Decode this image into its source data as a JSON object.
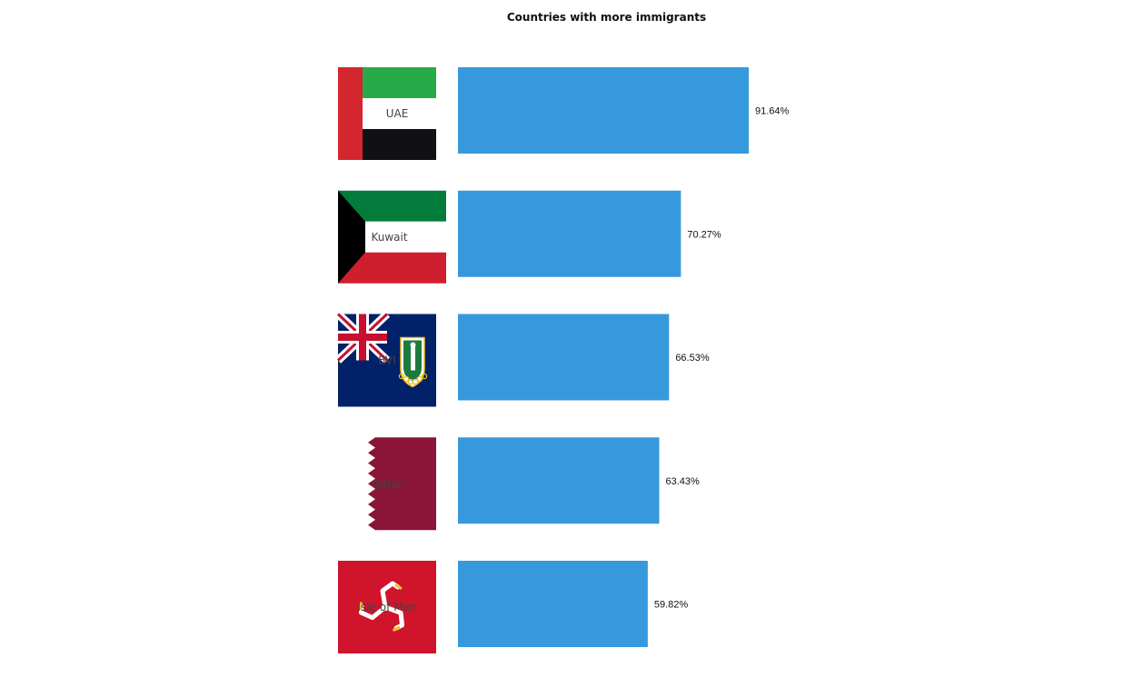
{
  "chart_data": {
    "type": "bar",
    "orientation": "horizontal",
    "title": "Countries with more immigrants",
    "categories": [
      "UAE",
      "Kuwait",
      "BVI",
      "Qatar",
      "Isle of Man"
    ],
    "values": [
      91.64,
      70.27,
      66.53,
      63.43,
      59.82
    ],
    "value_labels": [
      "91.64%",
      "70.27%",
      "66.53%",
      "63.43%",
      "59.82%"
    ],
    "flags": [
      "uae-flag",
      "kuwait-flag",
      "british-virgin-islands-flag",
      "qatar-flag",
      "isle-of-man-flag"
    ],
    "bar_color": "#3799dd",
    "xlim": [
      0,
      91.64
    ],
    "grid": false,
    "legend": "none"
  }
}
